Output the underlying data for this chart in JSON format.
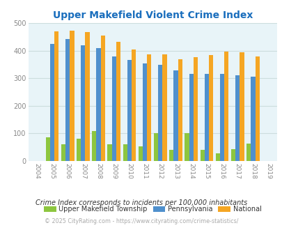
{
  "title": "Upper Makefield Violent Crime Index",
  "years": [
    2004,
    2005,
    2006,
    2007,
    2008,
    2009,
    2010,
    2011,
    2012,
    2013,
    2014,
    2015,
    2016,
    2017,
    2018,
    2019
  ],
  "township": [
    0,
    85,
    60,
    82,
    109,
    60,
    60,
    52,
    100,
    40,
    100,
    40,
    27,
    42,
    62,
    0
  ],
  "pennsylvania": [
    0,
    425,
    441,
    418,
    408,
    379,
    365,
    353,
    349,
    328,
    315,
    315,
    315,
    311,
    305,
    0
  ],
  "national": [
    0,
    469,
    473,
    468,
    455,
    432,
    405,
    387,
    387,
    368,
    376,
    383,
    397,
    394,
    379,
    0
  ],
  "ylim": [
    0,
    500
  ],
  "yticks": [
    0,
    100,
    200,
    300,
    400,
    500
  ],
  "bar_width": 0.28,
  "color_township": "#8dc63f",
  "color_pennsylvania": "#4f90cd",
  "color_national": "#f5a623",
  "bg_color": "#e8f4f8",
  "legend_labels": [
    "Upper Makefield Township",
    "Pennsylvania",
    "National"
  ],
  "legend_colors": [
    "#8dc63f",
    "#4f90cd",
    "#f5a623"
  ],
  "footnote1": "Crime Index corresponds to incidents per 100,000 inhabitants",
  "footnote2": "© 2025 CityRating.com - https://www.cityrating.com/crime-statistics/",
  "title_color": "#1a6ebd",
  "legend_text_color": "#333333",
  "footnote1_color": "#333333",
  "footnote2_color": "#aaaaaa",
  "grid_color": "#ccdddd",
  "tick_color": "#888888"
}
